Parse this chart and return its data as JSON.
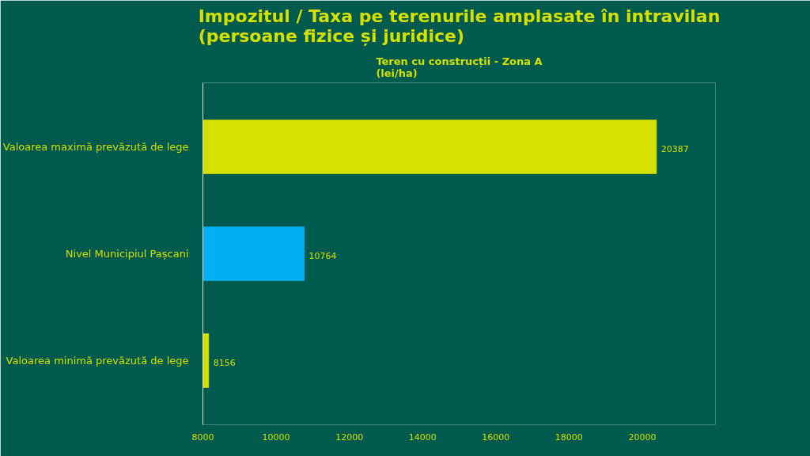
{
  "chart_data": {
    "type": "bar",
    "orientation": "horizontal",
    "title": "Impozitul / Taxa pe terenurile amplasate în intravilan\n(persoane fizice și juridice)",
    "subtitle": "Teren cu construcții - Zona A\n(lei/ha)",
    "categories": [
      "Valoarea maximă prevăzută de lege",
      "Nivel Municipiul Pașcani",
      "Valoarea minimă prevăzută de lege"
    ],
    "values": [
      20387,
      10764,
      8156
    ],
    "colors": [
      "#d4e000",
      "#00b0f0",
      "#d4e000"
    ],
    "xlim": [
      8000,
      22000
    ],
    "xticks": [
      8000,
      10000,
      12000,
      14000,
      16000,
      18000,
      20000
    ],
    "grid": false,
    "data_labels": true
  }
}
